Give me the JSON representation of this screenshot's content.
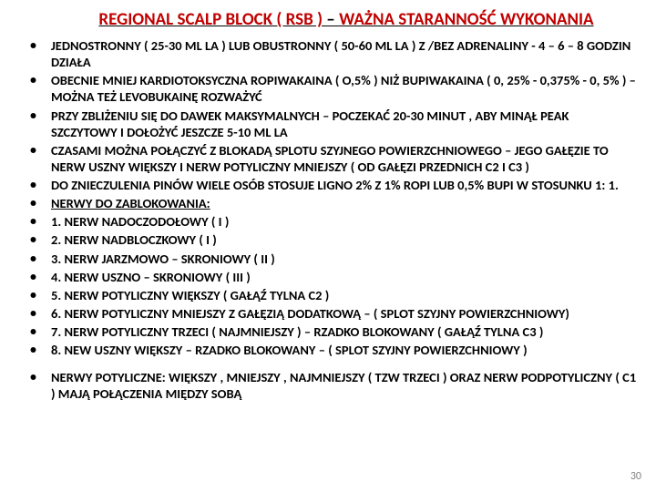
{
  "title": {
    "left": "REGIONAL SCALP BLOCK  ( RSB )",
    "sep": " – ",
    "right": "WAŻNA STARANNOŚĆ WYKONANIA"
  },
  "items": [
    {
      "text": "JEDNOSTRONNY  ( 25-30 ML LA )  LUB OBUSTRONNY  ( 50-60 ML LA ) Z /BEZ  ADRENALINY -  4 – 6 – 8 GODZIN DZIAŁA"
    },
    {
      "text": "OBECNIE  MNIEJ KARDIOTOKSYCZNA  ROPIWAKAINA ( O,5% ) NIŻ BUPIWAKAINA ( 0, 25% - 0,375% - 0, 5% ) – MOŻNA TEŻ  LEVOBUKAINĘ ROZWAŻYĆ"
    },
    {
      "text": "PRZY ZBLIŻENIU SIĘ DO DAWEK MAKSYMALNYCH – POCZEKAĆ 20-30 MINUT , ABY MINĄŁ PEAK SZCZYTOWY I DOŁOŻYĆ JESZCZE 5-10 ML LA"
    },
    {
      "text": "CZASAMI MOŻNA POŁĄCZYĆ   Z  BLOKADĄ SPLOTU SZYJNEGO POWIERZCHNIOWEGO – JEGO GAŁĘZIE TO NERW USZNY WIĘKSZY I NERW POTYLICZNY MNIEJSZY ( OD GAŁĘZI PRZEDNICH C2 I C3 )"
    },
    {
      "text": "DO ZNIECZULENIA PINÓW WIELE OSÓB STOSUJE  LIGNO 2%   Z   1% ROPI   LUB  0,5% BUPI  W STOSUNKU 1: 1."
    },
    {
      "text": "NERWY DO ZABLOKOWANIA:",
      "underline": true
    },
    {
      "text": "1. NERW NADOCZODOŁOWY ( I )"
    },
    {
      "text": "2. NERW NADBLOCZKOWY ( I )"
    },
    {
      "text": "3. NERW JARZMOWO – SKRONIOWY ( II )"
    },
    {
      "text": "4. NERW USZNO – SKRONIOWY ( III )"
    },
    {
      "text": "5. NERW POTYLICZNY WIĘKSZY (  GAŁĄŹ  TYLNA C2 )"
    },
    {
      "text": "6. NERW POTYLICZNY  MNIEJSZY Z GAŁĘZIĄ DODATKOWĄ – ( SPLOT SZYJNY POWIERZCHNIOWY)"
    },
    {
      "text": "7. NERW POTYLICZNY TRZECI ( NAJMNIEJSZY ) – RZADKO BLOKOWANY  (  GAŁĄŹ TYLNA C3 )"
    },
    {
      "text": "8. NEW USZNY WIĘKSZY – RZADKO BLOKOWANY – ( SPLOT  SZYJNY POWIERZCHNIOWY )"
    },
    {
      "text": "NERWY POTYLICZNE:  WIĘKSZY ,  MNIEJSZY  , NAJMNIEJSZY (  TZW  TRZECI )  ORAZ  NERW PODPOTYLICZNY ( C1  ) MAJĄ POŁĄCZENIA MIĘDZY SOBĄ",
      "spacer": true
    }
  ],
  "pageNumber": "30",
  "colors": {
    "title_red": "#c00000",
    "text": "#000000",
    "pagenum": "#808080",
    "background": "#ffffff"
  },
  "fontsize": {
    "title": 19,
    "body": 14.5,
    "pagenum": 12
  }
}
